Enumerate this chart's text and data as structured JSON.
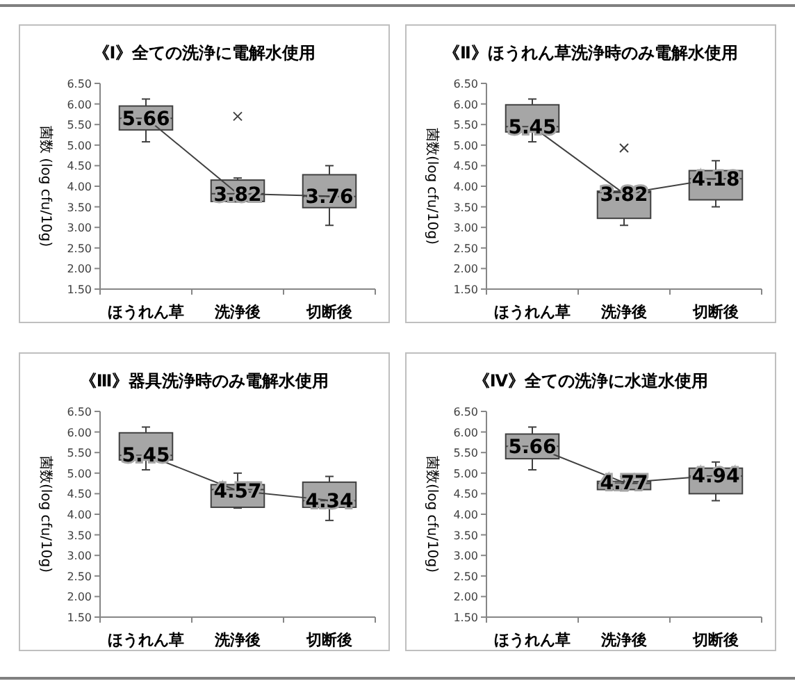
{
  "chart_data": [
    {
      "type": "box",
      "title": "《Ⅰ》全ての洗浄に電解水使用",
      "ylabel": "菌数 (log cfu/10g)",
      "categories": [
        "ほうれん草",
        "洗浄後",
        "切断後"
      ],
      "ylim": [
        1.5,
        6.5
      ],
      "yticks": [
        {
          "value": 1.5,
          "label": "1.50"
        },
        {
          "value": 2,
          "label": "2.00"
        },
        {
          "value": 2.5,
          "label": "2.50"
        },
        {
          "value": 3,
          "label": "3.00"
        },
        {
          "value": 3.5,
          "label": "3.50"
        },
        {
          "value": 4,
          "label": "4.00"
        },
        {
          "value": 4.5,
          "label": "4.50"
        },
        {
          "value": 5,
          "label": "5.00"
        },
        {
          "value": 5.5,
          "label": "5.50"
        },
        {
          "value": 6,
          "label": "6.00"
        },
        {
          "value": 6.5,
          "label": "6.50"
        }
      ],
      "grid": false,
      "data_labels": true,
      "series": [
        {
          "type": "box",
          "color": "#a6a6a6",
          "boxes": [
            {
              "low": 5.08,
              "q1": 5.37,
              "median": 5.65,
              "q3": 5.95,
              "high": 6.12
            },
            {
              "low": 3.62,
              "q1": 3.63,
              "median": 3.82,
              "q3": 4.15,
              "high": 4.2,
              "outliers": [
                5.7
              ]
            },
            {
              "low": 3.05,
              "q1": 3.48,
              "median": 3.75,
              "q3": 4.28,
              "high": 4.5
            }
          ]
        },
        {
          "type": "line",
          "color": "#404040",
          "marker": "none",
          "values": [
            5.66,
            3.82,
            3.76
          ]
        }
      ]
    },
    {
      "type": "box",
      "title": "《Ⅱ》ほうれん草洗浄時のみ電解水使用",
      "ylabel": "菌数(log cfu/10g)",
      "categories": [
        "ほうれん草",
        "洗浄後",
        "切断後"
      ],
      "ylim": [
        1.5,
        6.5
      ],
      "yticks": [
        {
          "value": 1.5,
          "label": "1.50"
        },
        {
          "value": 2,
          "label": "2.00"
        },
        {
          "value": 2.5,
          "label": "2.50"
        },
        {
          "value": 3,
          "label": "3.00"
        },
        {
          "value": 3.5,
          "label": "3.50"
        },
        {
          "value": 4,
          "label": "4.00"
        },
        {
          "value": 4.5,
          "label": "4.50"
        },
        {
          "value": 5,
          "label": "5.00"
        },
        {
          "value": 5.5,
          "label": "5.50"
        },
        {
          "value": 6,
          "label": "6.00"
        },
        {
          "value": 6.5,
          "label": "6.50"
        }
      ],
      "grid": false,
      "data_labels": true,
      "series": [
        {
          "type": "box",
          "color": "#a6a6a6",
          "boxes": [
            {
              "low": 5.08,
              "q1": 5.32,
              "median": 5.45,
              "q3": 5.98,
              "high": 6.12
            },
            {
              "low": 3.05,
              "q1": 3.22,
              "median": 3.85,
              "q3": 3.88,
              "high": 3.88,
              "outliers": [
                4.93
              ]
            },
            {
              "low": 3.5,
              "q1": 3.67,
              "median": 4.18,
              "q3": 4.38,
              "high": 4.62
            }
          ]
        },
        {
          "type": "line",
          "color": "#404040",
          "marker": "none",
          "values": [
            5.45,
            3.82,
            4.18
          ]
        }
      ]
    },
    {
      "type": "box",
      "title": "《Ⅲ》器具洗浄時のみ電解水使用",
      "ylabel": "菌数(log cfu/10g)",
      "categories": [
        "ほうれん草",
        "洗浄後",
        "切断後"
      ],
      "ylim": [
        1.5,
        6.5
      ],
      "yticks": [
        {
          "value": 1.5,
          "label": "1.50"
        },
        {
          "value": 2,
          "label": "2.00"
        },
        {
          "value": 2.5,
          "label": "2.50"
        },
        {
          "value": 3,
          "label": "3.00"
        },
        {
          "value": 3.5,
          "label": "3.50"
        },
        {
          "value": 4,
          "label": "4.00"
        },
        {
          "value": 4.5,
          "label": "4.50"
        },
        {
          "value": 5,
          "label": "5.00"
        },
        {
          "value": 5.5,
          "label": "5.50"
        },
        {
          "value": 6,
          "label": "6.00"
        },
        {
          "value": 6.5,
          "label": "6.50"
        }
      ],
      "grid": false,
      "data_labels": true,
      "series": [
        {
          "type": "box",
          "color": "#a6a6a6",
          "boxes": [
            {
              "low": 5.08,
              "q1": 5.32,
              "median": 5.43,
              "q3": 5.98,
              "high": 6.12
            },
            {
              "low": 4.15,
              "q1": 4.17,
              "median": 4.6,
              "q3": 4.72,
              "high": 5.0
            },
            {
              "low": 3.85,
              "q1": 4.17,
              "median": 4.33,
              "q3": 4.78,
              "high": 4.92
            }
          ]
        },
        {
          "type": "line",
          "color": "#404040",
          "marker": "none",
          "values": [
            5.45,
            4.57,
            4.34
          ]
        }
      ]
    },
    {
      "type": "box",
      "title": "《Ⅳ》全ての洗浄に水道水使用",
      "ylabel": "菌数(log cfu/10g)",
      "categories": [
        "ほうれん草",
        "洗浄後",
        "切断後"
      ],
      "ylim": [
        1.5,
        6.5
      ],
      "yticks": [
        {
          "value": 1.5,
          "label": "1.50"
        },
        {
          "value": 2,
          "label": "2.00"
        },
        {
          "value": 2.5,
          "label": "2.50"
        },
        {
          "value": 3,
          "label": "3.00"
        },
        {
          "value": 3.5,
          "label": "3.50"
        },
        {
          "value": 4,
          "label": "4.00"
        },
        {
          "value": 4.5,
          "label": "4.50"
        },
        {
          "value": 5,
          "label": "5.00"
        },
        {
          "value": 5.5,
          "label": "5.50"
        },
        {
          "value": 6,
          "label": "6.00"
        },
        {
          "value": 6.5,
          "label": "6.50"
        }
      ],
      "grid": false,
      "data_labels": true,
      "series": [
        {
          "type": "box",
          "color": "#a6a6a6",
          "boxes": [
            {
              "low": 5.08,
              "q1": 5.35,
              "median": 5.65,
              "q3": 5.95,
              "high": 6.12
            },
            {
              "low": 4.57,
              "q1": 4.6,
              "median": 4.75,
              "q3": 4.8,
              "high": 4.92
            },
            {
              "low": 4.33,
              "q1": 4.5,
              "median": 4.93,
              "q3": 5.12,
              "high": 5.27
            }
          ]
        },
        {
          "type": "line",
          "color": "#404040",
          "marker": "none",
          "values": [
            5.66,
            4.77,
            4.94
          ]
        }
      ]
    }
  ]
}
